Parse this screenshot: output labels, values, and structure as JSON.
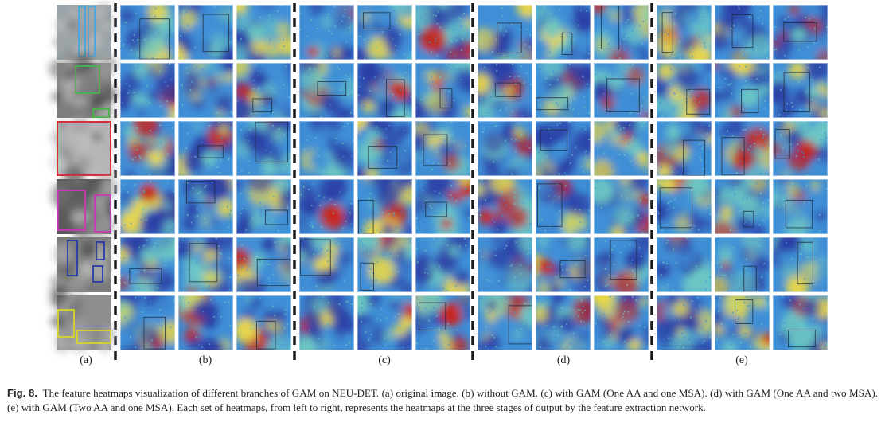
{
  "figure": {
    "labels": {
      "a": "(a)",
      "b": "(b)",
      "c": "(c)",
      "d": "(d)",
      "e": "(e)"
    },
    "rows": [
      {
        "defect_box_color": "#4aa6de",
        "tint": "#9aa3a8"
      },
      {
        "defect_box_color": "#48b548",
        "tint": "#7d7d7d"
      },
      {
        "defect_box_color": "#d8222e",
        "tint": "#b6b6b6"
      },
      {
        "defect_box_color": "#c838b8",
        "tint": "#5a5a5a"
      },
      {
        "defect_box_color": "#2a3aa8",
        "tint": "#7a7a7a"
      },
      {
        "defect_box_color": "#d6d62a",
        "tint": "#8e8e8e"
      }
    ],
    "heatmap_colors": {
      "cold": "#2c3fa6",
      "cool": "#3f8fd6",
      "mid": "#6cc8c4",
      "warm": "#e8d64a",
      "hot": "#c8281e"
    }
  },
  "caption": {
    "label": "Fig. 8.",
    "text": "The feature heatmaps visualization of different branches of GAM on NEU-DET. (a) original image. (b) without GAM. (c) with GAM (One AA and one MSA). (d) with GAM (One AA and two MSA). (e) with GAM (Two AA and one MSA). Each set of heatmaps, from left to right, represents the heatmaps at the three stages of output by the feature extraction network."
  }
}
